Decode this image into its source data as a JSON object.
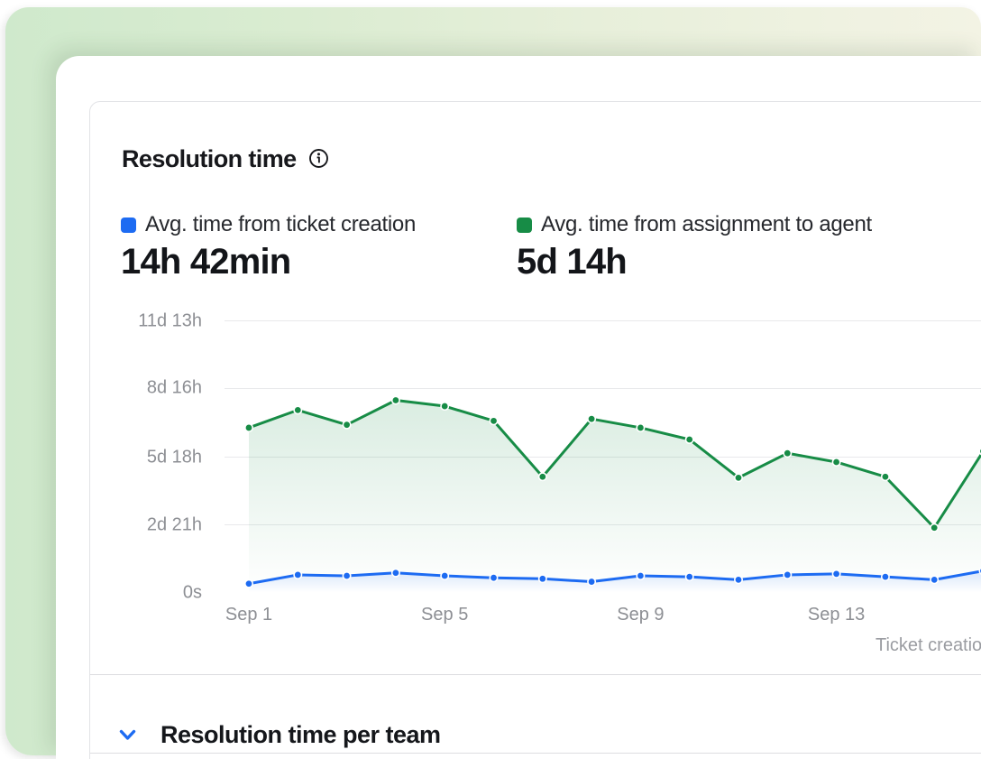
{
  "card": {
    "title": "Resolution time",
    "metrics": [
      {
        "label": "Avg. time from ticket creation",
        "value": "14h 42min",
        "color": "#1d6bf2"
      },
      {
        "label": "Avg. time from assignment to agent",
        "value": "5d 14h",
        "color": "#178c46"
      }
    ]
  },
  "footer": {
    "section_title": "Resolution time per team"
  },
  "chart_data": {
    "type": "line",
    "x": [
      "Sep 1",
      "Sep 2",
      "Sep 3",
      "Sep 4",
      "Sep 5",
      "Sep 6",
      "Sep 7",
      "Sep 8",
      "Sep 9",
      "Sep 10",
      "Sep 11",
      "Sep 12",
      "Sep 13",
      "Sep 14",
      "Sep 15",
      "Sep 16"
    ],
    "series": [
      {
        "name": "Avg. time from ticket creation",
        "color": "#1d6bf2",
        "unit": "hours",
        "values": [
          9,
          18,
          17,
          20,
          17,
          15,
          14,
          11,
          17,
          16,
          13,
          18,
          19,
          16,
          13,
          22
        ]
      },
      {
        "name": "Avg. time from assignment to agent",
        "color": "#178c46",
        "unit": "hours",
        "values": [
          168,
          186,
          171,
          196,
          190,
          175,
          118,
          177,
          168,
          156,
          117,
          142,
          133,
          118,
          66,
          144
        ]
      }
    ],
    "y_ticks": [
      {
        "value": 277,
        "label": "11d 13h",
        "gridline": true
      },
      {
        "value": 208,
        "label": "8d 16h",
        "gridline": true
      },
      {
        "value": 138,
        "label": "5d 18h",
        "gridline": true
      },
      {
        "value": 69,
        "label": "2d 21h",
        "gridline": true
      },
      {
        "value": 0,
        "label": "0s",
        "gridline": false
      }
    ],
    "x_ticks": [
      {
        "index": 0,
        "label": "Sep 1"
      },
      {
        "index": 4,
        "label": "Sep 5"
      },
      {
        "index": 8,
        "label": "Sep 9"
      },
      {
        "index": 12,
        "label": "Sep 13"
      }
    ],
    "xlabel": "Ticket creatio",
    "ylim": [
      0,
      277
    ],
    "grid": "horizontal",
    "legend_position": "top"
  }
}
